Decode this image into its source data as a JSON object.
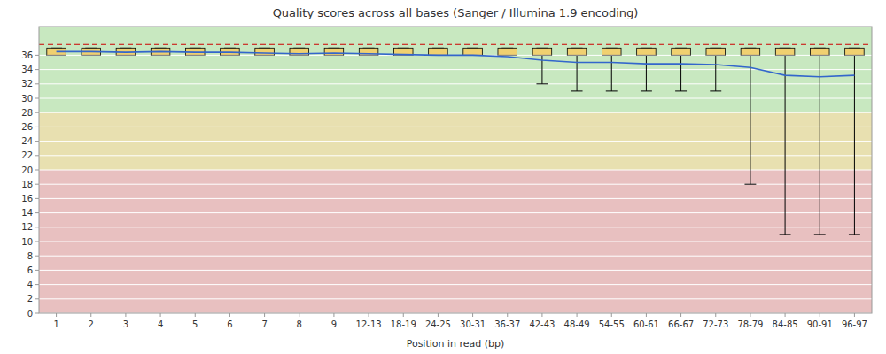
{
  "chart_data": {
    "type": "box",
    "title": "Quality scores across all bases (Sanger / Illumina 1.9 encoding)",
    "xlabel": "Position in read (bp)",
    "categories": [
      "1",
      "2",
      "3",
      "4",
      "5",
      "6",
      "7",
      "8",
      "9",
      "12-13",
      "18-19",
      "24-25",
      "30-31",
      "36-37",
      "42-43",
      "48-49",
      "54-55",
      "60-61",
      "66-67",
      "72-73",
      "78-79",
      "84-85",
      "90-91",
      "96-97"
    ],
    "ylim": [
      0,
      40
    ],
    "yticks": [
      0,
      2,
      4,
      6,
      8,
      10,
      12,
      14,
      16,
      18,
      20,
      22,
      24,
      26,
      28,
      30,
      32,
      34,
      36
    ],
    "grid": true,
    "zones": [
      {
        "low": 0,
        "high": 20,
        "color": "#e8c0c0"
      },
      {
        "low": 20,
        "high": 28,
        "color": "#e8e0b0"
      },
      {
        "low": 28,
        "high": 40,
        "color": "#c8e8c0"
      }
    ],
    "reference_line": {
      "value": 37.5,
      "color": "#cc0000",
      "line_style": "dashed"
    },
    "box": {
      "color": "#f0d070",
      "q1": [
        36.0,
        36.0,
        36.0,
        36.0,
        36.0,
        36.0,
        36.0,
        36.0,
        36.0,
        36.0,
        36.0,
        36.0,
        36.0,
        36.0,
        36.0,
        36.0,
        36.0,
        36.0,
        36.0,
        36.0,
        36.0,
        36.0,
        36.0,
        36.0
      ],
      "q3": [
        37.0,
        37.0,
        37.0,
        37.0,
        37.0,
        37.0,
        37.0,
        37.0,
        37.0,
        37.0,
        37.0,
        37.0,
        37.0,
        37.0,
        37.0,
        37.0,
        37.0,
        37.0,
        37.0,
        37.0,
        37.0,
        37.0,
        37.0,
        37.0
      ],
      "median": [
        36.0,
        36.0,
        36.0,
        36.0,
        36.0,
        36.0,
        36.0,
        36.0,
        36.0,
        36.0,
        36.0,
        36.0,
        36.0,
        36.0,
        36.0,
        36.0,
        36.0,
        36.0,
        36.0,
        36.0,
        36.0,
        36.0,
        36.0,
        36.0
      ],
      "whisker_high": [
        37.0,
        37.0,
        37.0,
        37.0,
        37.0,
        37.0,
        37.0,
        37.0,
        37.0,
        37.0,
        37.0,
        37.0,
        37.0,
        37.0,
        37.0,
        37.0,
        37.0,
        37.0,
        37.0,
        37.0,
        37.0,
        37.0,
        37.0,
        37.0
      ],
      "whisker_low": [
        36.0,
        36.0,
        36.0,
        36.0,
        36.0,
        36.0,
        36.0,
        36.0,
        36.0,
        36.0,
        36.0,
        36.0,
        36.0,
        36.0,
        32.0,
        31.0,
        31.0,
        31.0,
        31.0,
        31.0,
        18.0,
        11.0,
        11.0,
        11.0
      ]
    },
    "mean": {
      "color": "#3366cc",
      "values": [
        36.5,
        36.5,
        36.4,
        36.5,
        36.4,
        36.4,
        36.3,
        36.2,
        36.3,
        36.2,
        36.1,
        36.0,
        36.0,
        35.8,
        35.3,
        35.0,
        35.0,
        34.8,
        34.8,
        34.7,
        34.3,
        33.2,
        33.0,
        33.2
      ]
    }
  }
}
